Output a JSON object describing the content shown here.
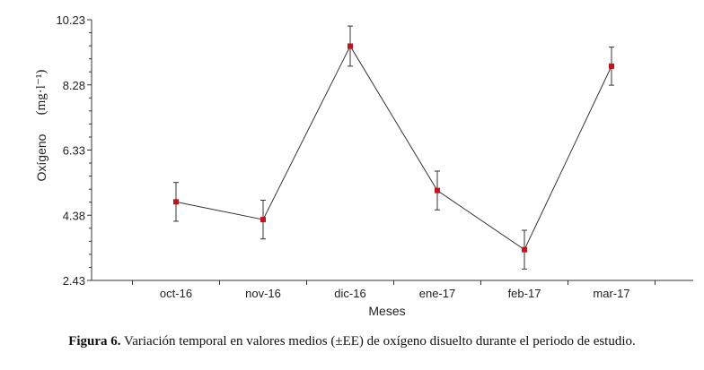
{
  "chart_data": {
    "type": "line",
    "xlabel": "Meses",
    "ylabel": "Oxígeno",
    "yunit": "(mg·l⁻¹)",
    "ylim": [
      2.43,
      10.23
    ],
    "yticks": [
      "2.43",
      "4.38",
      "6.33",
      "8.28",
      "10.23"
    ],
    "categories": [
      "oct-16",
      "nov-16",
      "dic-16",
      "ene-17",
      "feb-17",
      "mar-17"
    ],
    "series": [
      {
        "values": [
          4.78,
          4.25,
          9.44,
          5.12,
          3.35,
          8.84
        ],
        "error": [
          0.58,
          0.58,
          0.6,
          0.58,
          0.58,
          0.57
        ]
      }
    ],
    "grid": false,
    "marker_color": "#c0141c",
    "line_color": "#333333"
  },
  "caption": {
    "label": "Figura 6.",
    "text": " Variación temporal en valores medios (±EE) de oxígeno disuelto durante el periodo de estudio."
  }
}
